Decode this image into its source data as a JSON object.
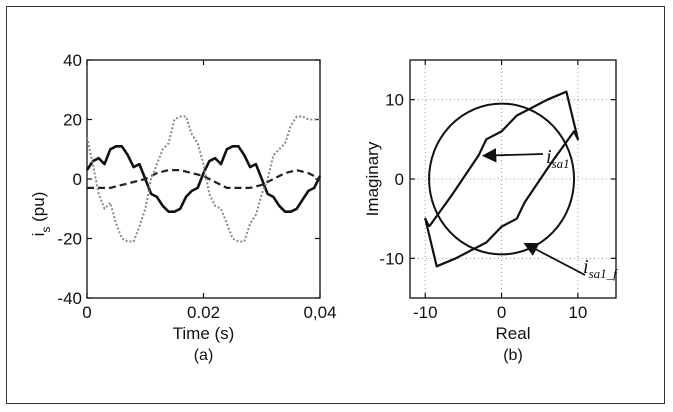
{
  "chart_data": [
    {
      "type": "line",
      "panel_label": "(a)",
      "xlabel": "Time (s)",
      "ylabel_main": "i",
      "ylabel_sub": "s",
      "ylabel_rest": " (pu)",
      "xlim": [
        0,
        0.04
      ],
      "ylim": [
        -40,
        40
      ],
      "xticks": [
        0,
        0.02,
        0.04
      ],
      "xtick_labels": [
        "0",
        "0.02",
        "0,04"
      ],
      "yticks": [
        40,
        20,
        0,
        -20,
        -40
      ],
      "ytick_labels": [
        "40",
        "20",
        "0",
        "-20",
        "-40"
      ],
      "series": [
        {
          "style": "solid",
          "x": [
            0,
            0.001,
            0.002,
            0.003,
            0.004,
            0.005,
            0.006,
            0.007,
            0.008,
            0.009,
            0.01,
            0.011,
            0.012,
            0.013,
            0.014,
            0.015,
            0.016,
            0.017,
            0.018,
            0.019,
            0.02,
            0.021,
            0.022,
            0.023,
            0.024,
            0.025,
            0.026,
            0.027,
            0.028,
            0.029,
            0.03,
            0.031,
            0.032,
            0.033,
            0.034,
            0.035,
            0.036,
            0.037,
            0.038,
            0.039,
            0.04
          ],
          "y": [
            3,
            6,
            7,
            5,
            10,
            11,
            11,
            8,
            4,
            5,
            0,
            -5,
            -6,
            -9,
            -11,
            -11,
            -10,
            -6,
            -4,
            -3,
            2,
            6,
            7,
            5,
            10,
            11,
            11,
            8,
            4,
            5,
            0,
            -5,
            -6,
            -9,
            -11,
            -11,
            -10,
            -7,
            -4,
            -3,
            1
          ]
        },
        {
          "style": "dashed",
          "x": [
            0,
            0.002,
            0.004,
            0.006,
            0.008,
            0.01,
            0.012,
            0.014,
            0.016,
            0.018,
            0.02,
            0.022,
            0.024,
            0.026,
            0.028,
            0.03,
            0.032,
            0.034,
            0.036,
            0.038,
            0.04
          ],
          "y": [
            -3,
            -3,
            -3,
            -2,
            -1,
            0,
            2,
            3,
            3,
            2,
            1,
            -1,
            -3,
            -3,
            -3,
            -2,
            0,
            2,
            3,
            2,
            0
          ]
        },
        {
          "style": "dotted",
          "x": [
            0,
            0.001,
            0.002,
            0.003,
            0.004,
            0.005,
            0.006,
            0.007,
            0.008,
            0.009,
            0.01,
            0.011,
            0.012,
            0.013,
            0.014,
            0.015,
            0.016,
            0.017,
            0.018,
            0.019,
            0.02,
            0.021,
            0.022,
            0.023,
            0.024,
            0.025,
            0.026,
            0.027,
            0.028,
            0.029,
            0.03,
            0.031,
            0.032,
            0.033,
            0.034,
            0.035,
            0.036,
            0.037,
            0.038,
            0.039,
            0.04
          ],
          "y": [
            14,
            5,
            -5,
            -10,
            -8,
            -15,
            -20,
            -21,
            -21,
            -16,
            -10,
            0,
            5,
            10,
            12,
            20,
            21,
            21,
            15,
            12,
            5,
            -5,
            -9,
            -10,
            -15,
            -20,
            -21,
            -21,
            -15,
            -12,
            -5,
            0,
            8,
            10,
            12,
            18,
            21,
            21,
            20,
            20,
            20
          ]
        }
      ]
    },
    {
      "type": "line",
      "panel_label": "(b)",
      "xlabel": "Real",
      "ylabel": "Imaginary",
      "xlim": [
        -12,
        15
      ],
      "ylim": [
        -15,
        15
      ],
      "xticks": [
        -10,
        0,
        10
      ],
      "xtick_labels": [
        "-10",
        "0",
        "10"
      ],
      "yticks": [
        10,
        0,
        -10
      ],
      "ytick_labels": [
        "10",
        "0",
        "-10"
      ],
      "grid": true,
      "circle": {
        "center": [
          0,
          0
        ],
        "radius": 9.5
      },
      "trajectory": {
        "x": [
          -9.5,
          -6.5,
          -3,
          -2,
          0,
          2,
          4,
          6,
          8.5,
          10,
          9.5,
          6.5,
          3,
          2,
          0,
          -2,
          -4,
          -6,
          -8.5,
          -10,
          -9.5
        ],
        "y": [
          -6,
          -2,
          3,
          5,
          6,
          8,
          9,
          10,
          11,
          5,
          6,
          2,
          -3,
          -5,
          -6,
          -8,
          -9,
          -10,
          -11,
          -5,
          -6
        ]
      },
      "annotations": [
        {
          "text": "i",
          "sub": "sa1",
          "points_to": [
            -2.5,
            3.2
          ]
        },
        {
          "text": "i",
          "sub": "sa1_f",
          "points_to": [
            2.5,
            -7.5
          ]
        }
      ]
    }
  ]
}
